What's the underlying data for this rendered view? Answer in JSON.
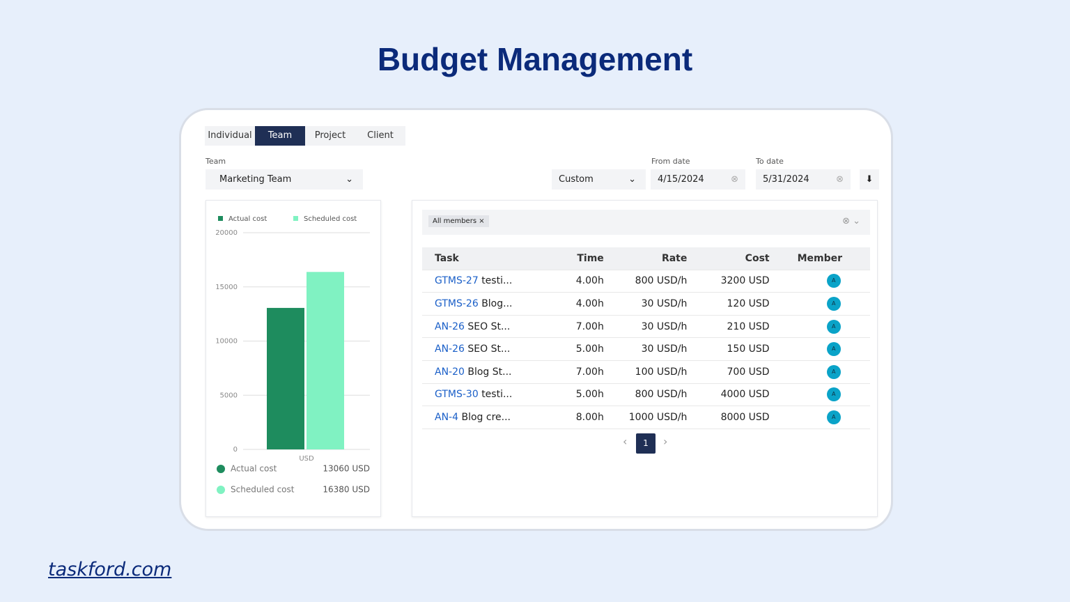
{
  "header": {
    "title": "Budget Management"
  },
  "tabs": [
    "Individual",
    "Team",
    "Project",
    "Client"
  ],
  "filters": {
    "team_label": "Team",
    "team_value": "Marketing Team",
    "range": "Custom",
    "from_label": "From date",
    "from_value": "4/15/2024",
    "to_label": "To date",
    "to_value": "5/31/2024"
  },
  "chart_data": {
    "type": "bar",
    "categories": [
      "USD"
    ],
    "series": [
      {
        "name": "Actual cost",
        "color": "#1e8c5e",
        "values": [
          13060
        ],
        "value_labels": [
          "13060 USD"
        ]
      },
      {
        "name": "Scheduled cost",
        "color": "#80f2c2",
        "values": [
          16380
        ],
        "value_labels": [
          "16380 USD"
        ]
      }
    ],
    "ylim": [
      0,
      20000
    ],
    "yticks": [
      0,
      5000,
      10000,
      15000,
      20000
    ],
    "grid": true
  },
  "table": {
    "filter_chip": "All members",
    "columns": [
      "Task",
      "Time",
      "Rate",
      "Cost",
      "Member"
    ],
    "rows": [
      [
        "GTMS-27",
        "testi...",
        "4.00h",
        "800 USD/h",
        "3200 USD",
        "A"
      ],
      [
        "GTMS-26",
        "Blog...",
        "4.00h",
        "30 USD/h",
        "120 USD",
        "A"
      ],
      [
        "AN-26",
        "SEO St...",
        "7.00h",
        "30 USD/h",
        "210 USD",
        "A"
      ],
      [
        "AN-26",
        "SEO St...",
        "5.00h",
        "30 USD/h",
        "150 USD",
        "A"
      ],
      [
        "AN-20",
        "Blog St...",
        "7.00h",
        "100 USD/h",
        "700 USD",
        "A"
      ],
      [
        "GTMS-30",
        "testi...",
        "5.00h",
        "800 USD/h",
        "4000 USD",
        "A"
      ],
      [
        "AN-4",
        "Blog cre...",
        "8.00h",
        "1000 USD/h",
        "8000 USD",
        "A"
      ]
    ],
    "page": "1"
  },
  "footer": {
    "link": "taskford.com"
  }
}
